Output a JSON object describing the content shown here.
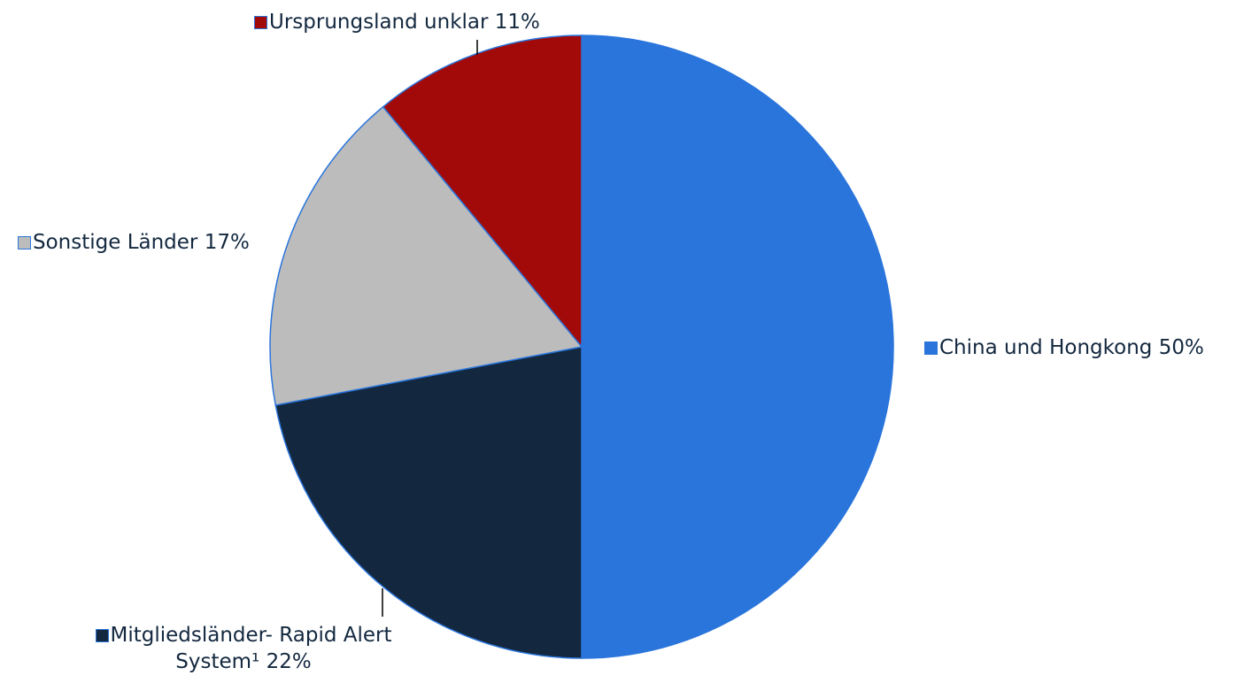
{
  "chart_data": {
    "type": "pie",
    "categories": [
      "China und Hongkong",
      "Mitgliedsländer- Rapid Alert System¹",
      "Sonstige Länder",
      "Ursprungsland unklar"
    ],
    "values": [
      50,
      22,
      17,
      11
    ],
    "value_labels": [
      "50%",
      "22%",
      "17%",
      "11%"
    ],
    "colors": [
      "#2a75dc",
      "#13283f",
      "#bcbcbc",
      "#a20a0a"
    ]
  }
}
